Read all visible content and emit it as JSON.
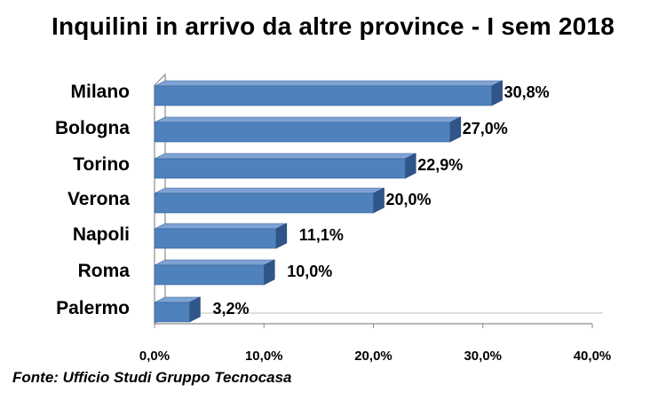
{
  "chart_data": {
    "type": "bar",
    "orientation": "horizontal",
    "title": "Inquilini in arrivo da altre province - I sem 2018",
    "categories": [
      "Milano",
      "Bologna",
      "Torino",
      "Verona",
      "Napoli",
      "Roma",
      "Palermo"
    ],
    "values": [
      30.8,
      27.0,
      22.9,
      20.0,
      11.1,
      10.0,
      3.2
    ],
    "value_labels": [
      "30,8%",
      "27,0%",
      "22,9%",
      "20,0%",
      "11,1%",
      "10,0%",
      "3,2%"
    ],
    "x_ticks": [
      "0,0%",
      "10,0%",
      "20,0%",
      "30,0%",
      "40,0%"
    ],
    "x_tick_values": [
      0,
      10,
      20,
      30,
      40
    ],
    "xlim": [
      0,
      40
    ],
    "xlabel": "",
    "ylabel": "",
    "grid": false,
    "legend": "none",
    "style": "3d",
    "bar_color": "#4f81bd"
  },
  "source": "Fonte: Ufficio Studi Gruppo Tecnocasa"
}
